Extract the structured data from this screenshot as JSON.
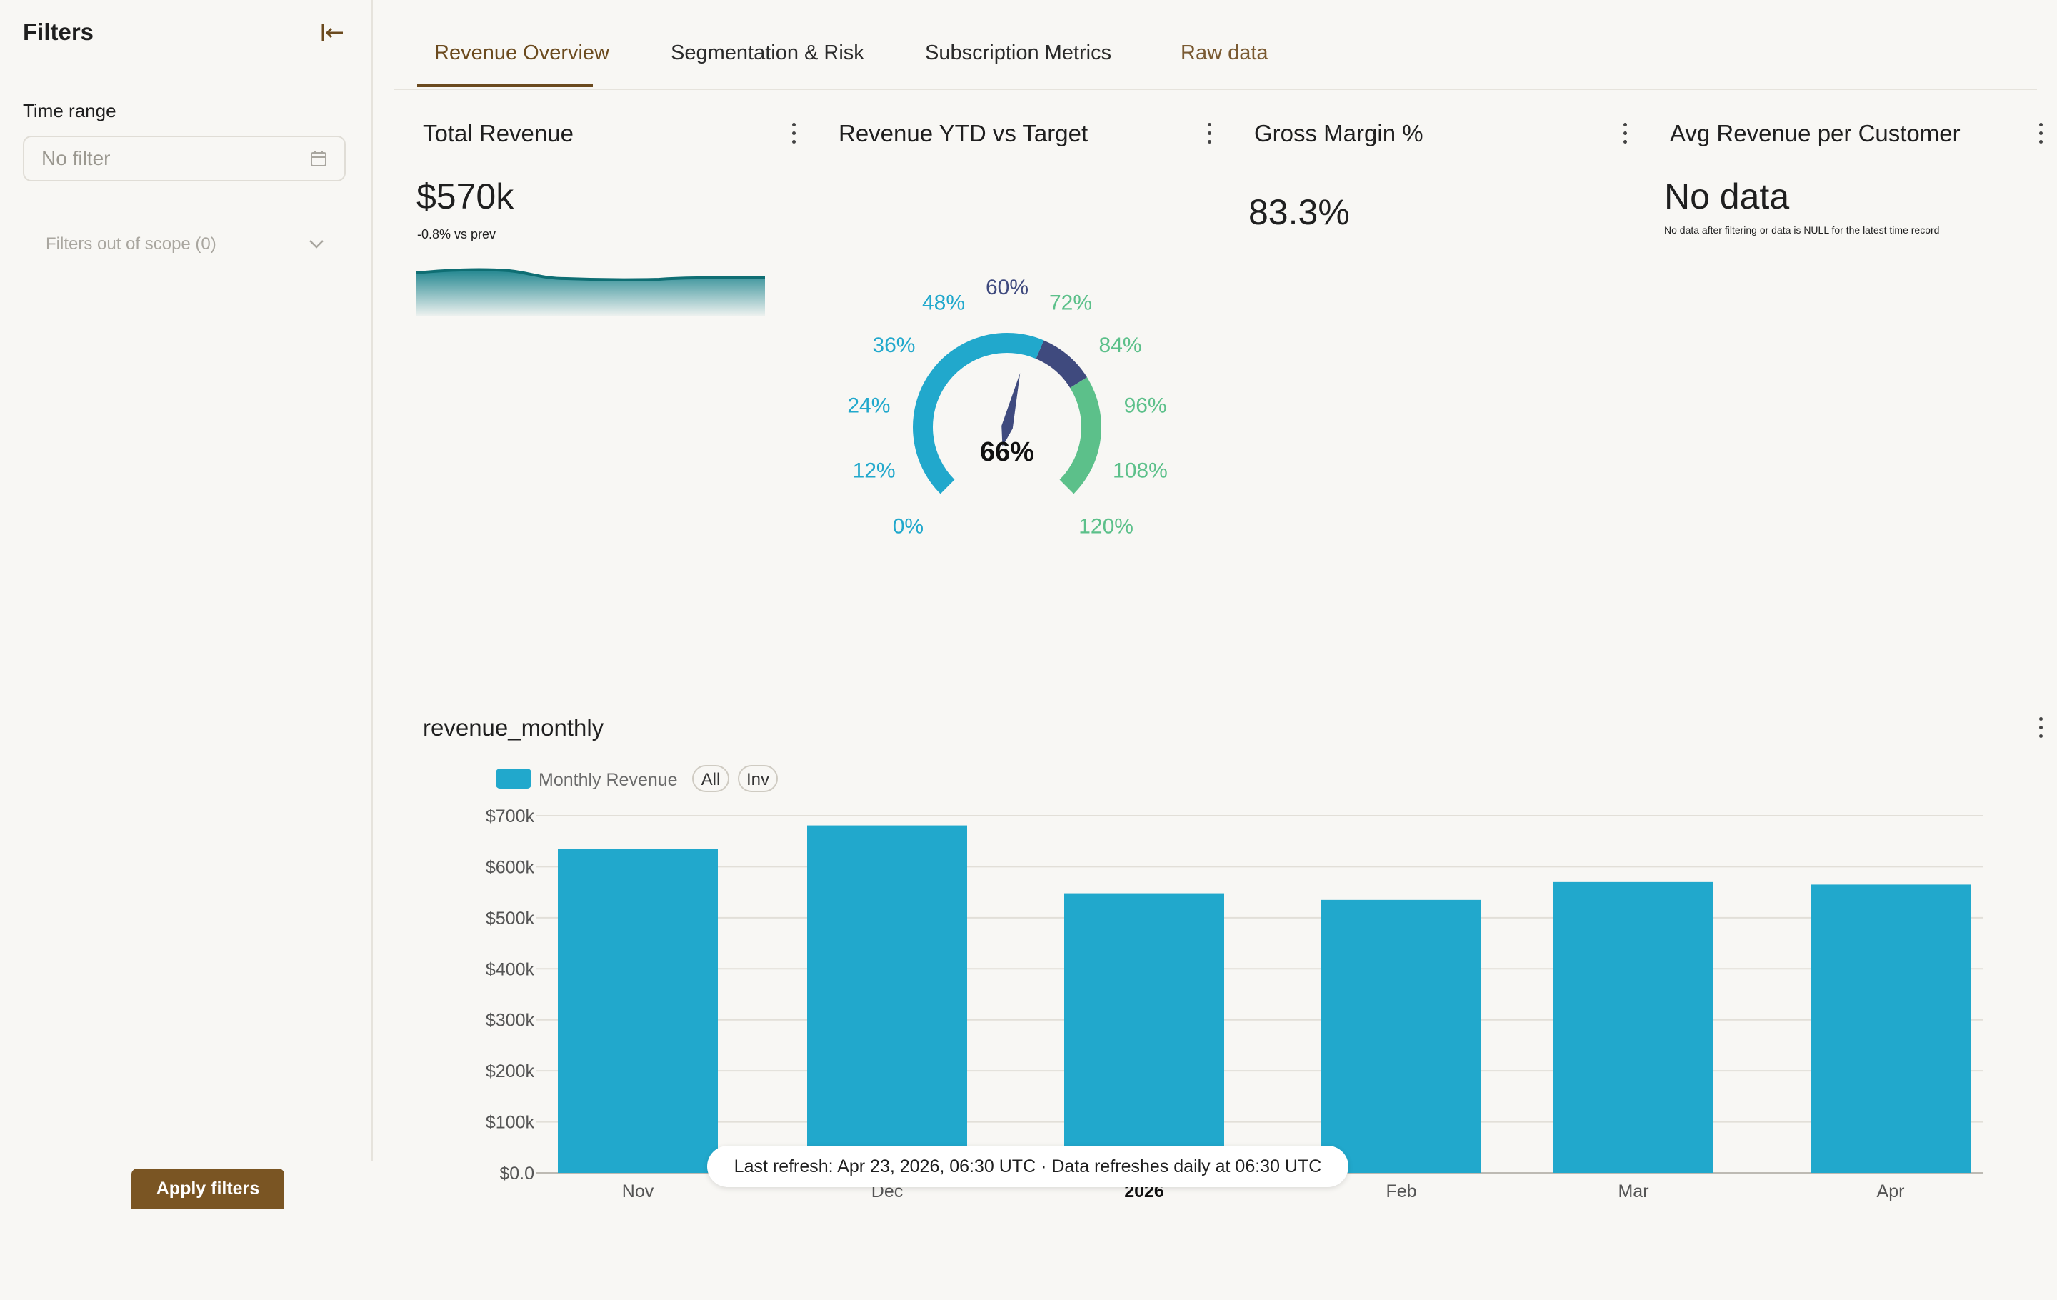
{
  "sidebar": {
    "title": "Filters",
    "time_range_label": "Time range",
    "time_range_placeholder": "No filter",
    "out_of_scope": "Filters out of scope (0)",
    "apply_label": "Apply filters"
  },
  "tabs": [
    {
      "label": "Revenue Overview",
      "active": true
    },
    {
      "label": "Segmentation & Risk"
    },
    {
      "label": "Subscription Metrics"
    },
    {
      "label": "Raw data"
    }
  ],
  "cards": {
    "total_revenue": {
      "title": "Total Revenue",
      "value": "$570k",
      "delta": "-0.8% vs prev"
    },
    "ytd_target": {
      "title": "Revenue YTD vs Target",
      "value": "66%",
      "ticks": [
        "0%",
        "12%",
        "24%",
        "36%",
        "48%",
        "60%",
        "72%",
        "84%",
        "96%",
        "108%",
        "120%"
      ]
    },
    "gross_margin": {
      "title": "Gross Margin %",
      "value": "83.3%"
    },
    "avg_revenue": {
      "title": "Avg Revenue per Customer",
      "value": "No data",
      "sub": "No data after filtering or data is NULL for the latest time record"
    }
  },
  "colors": {
    "bar": "#21a8cc",
    "gauge_low": "#21a8cc",
    "gauge_mid": "#3f4a7e",
    "gauge_high": "#5cc08a",
    "accent": "#7a5523"
  },
  "chart": {
    "title": "revenue_monthly",
    "legend_label": "Monthly Revenue",
    "pill_all": "All",
    "pill_inv": "Inv"
  },
  "chart_data": {
    "type": "bar",
    "categories": [
      "Nov",
      "Dec",
      "2026",
      "Feb",
      "Mar",
      "Apr"
    ],
    "series": [
      {
        "name": "Monthly Revenue",
        "values": [
          635000,
          681000,
          548000,
          535000,
          570000,
          565000
        ]
      }
    ],
    "ylim": [
      0,
      700000
    ],
    "yticks": [
      "$0.0",
      "$100k",
      "$200k",
      "$300k",
      "$400k",
      "$500k",
      "$600k",
      "$700k"
    ],
    "grid": true
  },
  "refresh_text": "Last refresh: Apr 23, 2026, 06:30 UTC · Data refreshes daily at 06:30 UTC"
}
